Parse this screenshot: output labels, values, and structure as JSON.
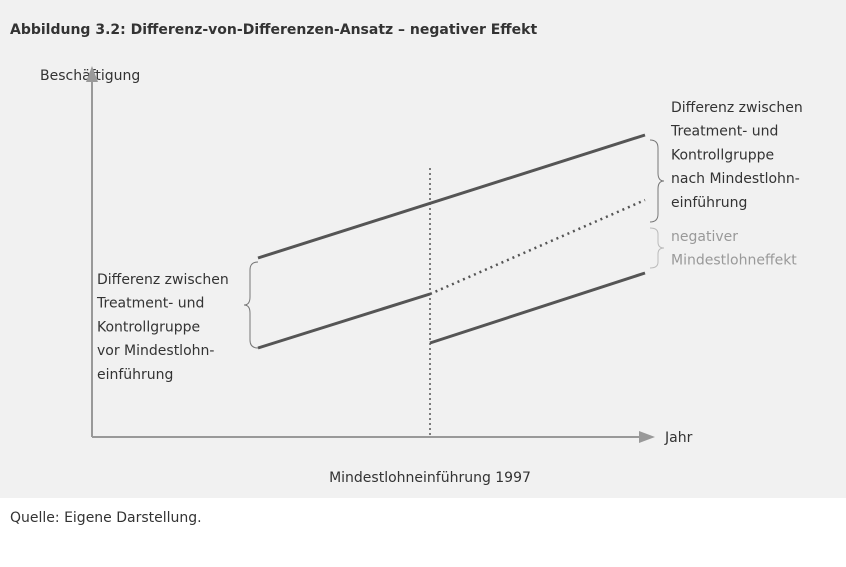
{
  "title": "Abbildung 3.2: Differenz-von-Differenzen-Ansatz – negativer Effekt",
  "y_axis_label": "Beschäftigung",
  "x_axis_label": "Jahr",
  "intervention_label": "Mindestlohneinführung 1997",
  "left_annotation": [
    "Differenz zwischen",
    "Treatment- und",
    "Kontrollgruppe",
    "vor Mindestlohn-",
    "einführung"
  ],
  "right_annotation": [
    "Differenz zwischen",
    "Treatment- und",
    "Kontrollgruppe",
    "nach Mindestlohn-",
    "einführung"
  ],
  "effect_annotation": [
    "negativer",
    "Mindestlohneffekt"
  ],
  "source": "Quelle: Eigene Darstellung."
}
